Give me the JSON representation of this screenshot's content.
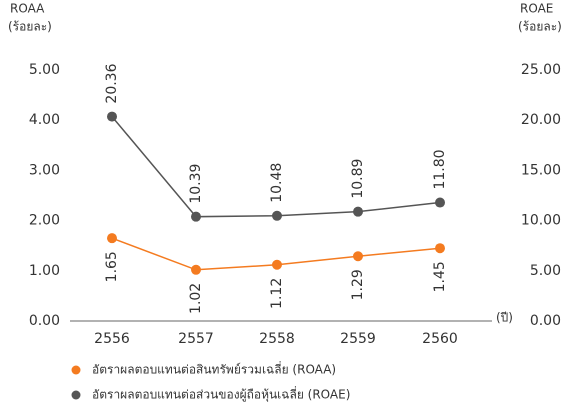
{
  "chart_data": {
    "type": "line",
    "y_label": "ROAA",
    "y_unit": "(ร้อยละ)",
    "y2_label": "ROAE",
    "y2_unit": "(ร้อยละ)",
    "x_unit": "(ปี)",
    "categories": [
      "2556",
      "2557",
      "2558",
      "2559",
      "2560"
    ],
    "series": [
      {
        "name": "อัตราผลตอบแทนต่อสินทรัพย์รวมเฉลี่ย (ROAA)",
        "color": "#f47b20",
        "axis": "y",
        "values": [
          1.65,
          1.02,
          1.12,
          1.29,
          1.45
        ]
      },
      {
        "name": "อัตราผลตอบแทนต่อส่วนของผู้ถือหุ้นเฉลี่ย (ROAE)",
        "color": "#555555",
        "axis": "y2",
        "values": [
          20.36,
          10.39,
          10.48,
          10.89,
          11.8
        ],
        "value_labels": [
          "20.36",
          "10.39",
          "10.48",
          "10.89",
          "11.80"
        ]
      }
    ],
    "ylim": [
      0,
      5
    ],
    "yticks": [
      {
        "value": 0,
        "label": "0.00"
      },
      {
        "value": 1,
        "label": "1.00"
      },
      {
        "value": 2,
        "label": "2.00"
      },
      {
        "value": 3,
        "label": "3.00"
      },
      {
        "value": 4,
        "label": "4.00"
      },
      {
        "value": 5,
        "label": "5.00"
      }
    ],
    "y2lim": [
      0,
      25
    ],
    "y2ticks": [
      {
        "value": 0,
        "label": "0.00"
      },
      {
        "value": 5,
        "label": "5.00"
      },
      {
        "value": 10,
        "label": "10.00"
      },
      {
        "value": 15,
        "label": "15.00"
      },
      {
        "value": 20,
        "label": "20.00"
      },
      {
        "value": 25,
        "label": "25.00"
      }
    ],
    "grid": false
  }
}
